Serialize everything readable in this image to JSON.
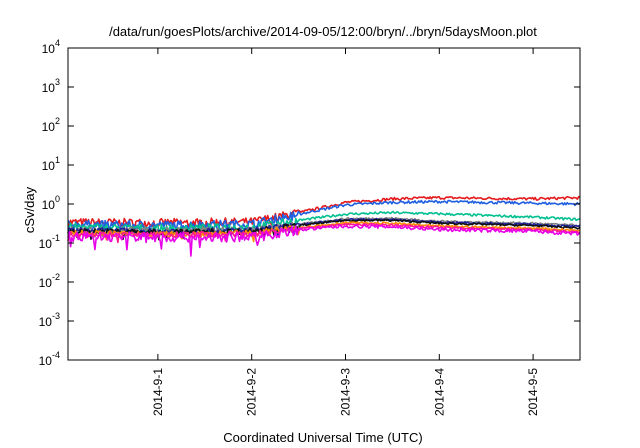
{
  "chart_data": {
    "type": "line",
    "title": "/data/run/goesPlots/archive/2014-09-05/12:00/bryn/../bryn/5daysMoon.plot",
    "xlabel": "Coordinated Universal Time (UTC)",
    "ylabel": "cSv/day",
    "y_scale": "log",
    "ylim": [
      0.0001,
      10000
    ],
    "y_ticks": [
      {
        "value": 0.0001,
        "base": "10",
        "exp": "-4"
      },
      {
        "value": 0.001,
        "base": "10",
        "exp": "-3"
      },
      {
        "value": 0.01,
        "base": "10",
        "exp": "-2"
      },
      {
        "value": 0.1,
        "base": "10",
        "exp": "-1"
      },
      {
        "value": 1,
        "base": "10",
        "exp": "0"
      },
      {
        "value": 10,
        "base": "10",
        "exp": "1"
      },
      {
        "value": 100,
        "base": "10",
        "exp": "2"
      },
      {
        "value": 1000,
        "base": "10",
        "exp": "3"
      },
      {
        "value": 10000,
        "base": "10",
        "exp": "4"
      }
    ],
    "xlim": [
      "2014-08-31T01:00",
      "2014-09-05T12:00"
    ],
    "x_ticks": [
      {
        "value": "2014-09-01T00:00",
        "label": "2014-9-1"
      },
      {
        "value": "2014-09-02T00:00",
        "label": "2014-9-2"
      },
      {
        "value": "2014-09-03T00:00",
        "label": "2014-9-3"
      },
      {
        "value": "2014-09-04T00:00",
        "label": "2014-9-4"
      },
      {
        "value": "2014-09-05T00:00",
        "label": "2014-9-5"
      }
    ],
    "grid": false,
    "legend": "none",
    "x": [
      "2014-08-31T01:00",
      "2014-09-01T00:00",
      "2014-09-02T00:00",
      "2014-09-02T12:00",
      "2014-09-03T00:00",
      "2014-09-03T12:00",
      "2014-09-04T00:00",
      "2014-09-05T00:00",
      "2014-09-05T12:00"
    ],
    "series": [
      {
        "color": "#e41a1c",
        "values": [
          0.34,
          0.33,
          0.35,
          0.6,
          1.1,
          1.35,
          1.45,
          1.35,
          1.45
        ],
        "noise": 0.07
      },
      {
        "color": "#1f5fe0",
        "values": [
          0.3,
          0.29,
          0.31,
          0.55,
          0.95,
          1.1,
          1.15,
          1.05,
          1.0
        ],
        "noise": 0.07
      },
      {
        "color": "#00c090",
        "values": [
          0.26,
          0.24,
          0.26,
          0.38,
          0.55,
          0.6,
          0.56,
          0.46,
          0.4
        ],
        "noise": 0.06
      },
      {
        "color": "#808080",
        "values": [
          0.22,
          0.21,
          0.22,
          0.3,
          0.42,
          0.43,
          0.36,
          0.32,
          0.28
        ],
        "noise": 0.05
      },
      {
        "color": "#2020a0",
        "values": [
          0.21,
          0.2,
          0.21,
          0.29,
          0.4,
          0.4,
          0.34,
          0.3,
          0.26
        ],
        "noise": 0.05
      },
      {
        "color": "#101010",
        "values": [
          0.2,
          0.19,
          0.2,
          0.28,
          0.38,
          0.38,
          0.32,
          0.28,
          0.24
        ],
        "noise": 0.05
      },
      {
        "color": "#ff8c00",
        "values": [
          0.18,
          0.17,
          0.18,
          0.25,
          0.33,
          0.32,
          0.27,
          0.24,
          0.21
        ],
        "noise": 0.05
      },
      {
        "color": "#ff1a90",
        "values": [
          0.17,
          0.16,
          0.17,
          0.23,
          0.3,
          0.29,
          0.25,
          0.22,
          0.19
        ],
        "noise": 0.05
      },
      {
        "color": "#e800e8",
        "values": [
          0.15,
          0.14,
          0.14,
          0.22,
          0.27,
          0.26,
          0.22,
          0.2,
          0.17
        ],
        "noise": 0.09
      }
    ]
  }
}
